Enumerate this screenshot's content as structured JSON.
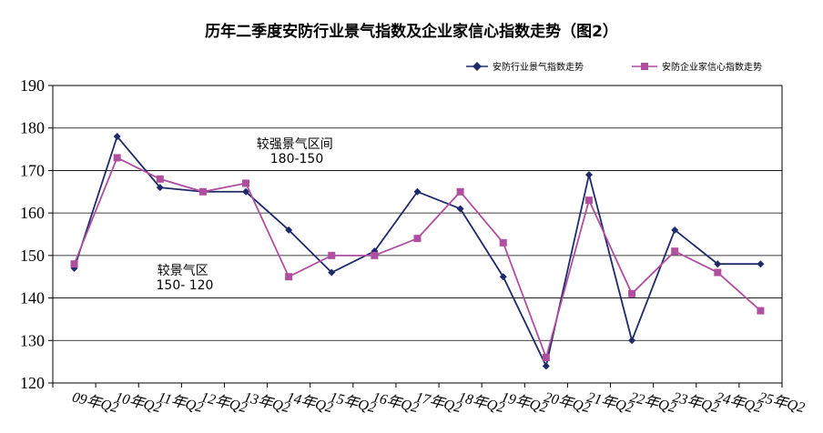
{
  "chart_data": {
    "type": "line",
    "title": "历年二季度安防行业景气指数及企业家信心指数走势（图2）",
    "categories": [
      "09年Q2",
      "10年Q2",
      "11年Q2",
      "12年Q2",
      "13年Q2",
      "14年Q2",
      "15年Q2",
      "16年Q2",
      "17年Q2",
      "18年Q2",
      "19年Q2",
      "20年Q2",
      "21年Q2",
      "22年Q2",
      "23年Q2",
      "24年Q2",
      "25年Q2"
    ],
    "ylim": [
      120,
      190
    ],
    "yticks": [
      120,
      130,
      140,
      150,
      160,
      170,
      180,
      190
    ],
    "grid": true,
    "legend_position": "top-right",
    "series": [
      {
        "name": "安防行业景气指数走势",
        "color": "#1f2a6b",
        "marker": "diamond",
        "values": [
          147,
          178,
          166,
          165,
          165,
          156,
          146,
          151,
          165,
          161,
          145,
          124,
          169,
          130,
          156,
          148,
          148
        ]
      },
      {
        "name": "安防企业家信心指数走势",
        "color": "#b04ea0",
        "marker": "square",
        "values": [
          148,
          173,
          168,
          165,
          167,
          145,
          150,
          150,
          154,
          165,
          153,
          126,
          163,
          141,
          151,
          146,
          137
        ]
      }
    ],
    "annotations": [
      {
        "lines": [
          "较强景气区间",
          "180-150"
        ]
      },
      {
        "lines": [
          "较景气区",
          "150- 120"
        ]
      }
    ]
  }
}
